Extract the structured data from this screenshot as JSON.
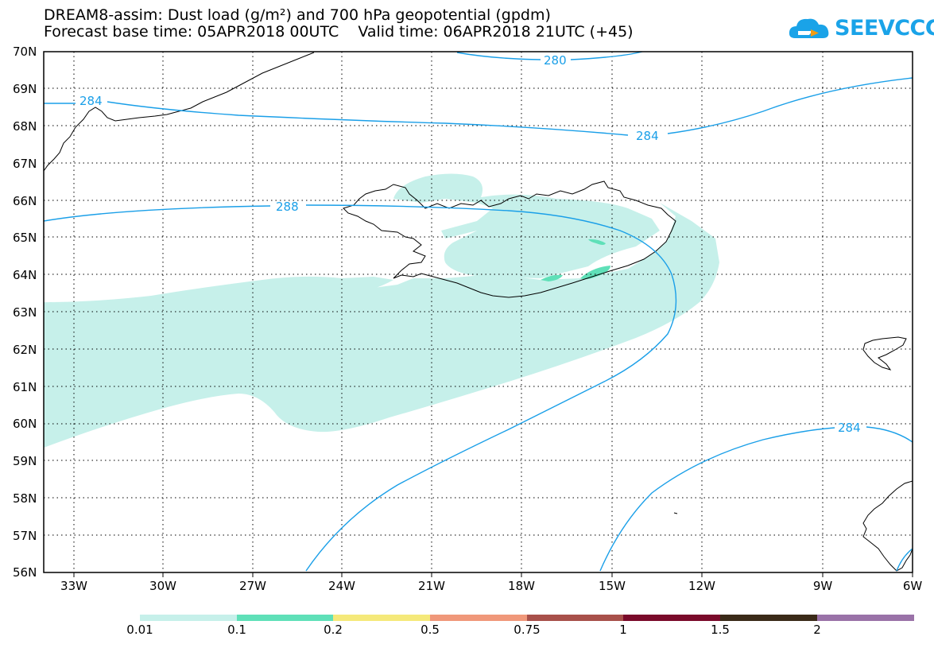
{
  "header": {
    "title_line1": "DREAM8-assim: Dust load (g/m²) and 700 hPa geopotential (gpdm)",
    "title_line2": "Forecast base time: 05APR2018 00UTC    Valid time: 06APR2018 21UTC (+45)",
    "logo_text": "SEEVCCC",
    "logo_icon": "cloud-logo-icon"
  },
  "map": {
    "lat_labels": [
      "70N",
      "69N",
      "68N",
      "67N",
      "66N",
      "65N",
      "64N",
      "63N",
      "62N",
      "61N",
      "60N",
      "59N",
      "58N",
      "57N",
      "56N"
    ],
    "lon_labels": [
      "33W",
      "30W",
      "27W",
      "24W",
      "21W",
      "18W",
      "15W",
      "12W",
      "9W",
      "6W"
    ],
    "contour_labels": [
      "280",
      "284",
      "284",
      "288",
      "284"
    ],
    "contour_color": "#1a9fe8",
    "coastline_color": "#000000",
    "grid": "dotted"
  },
  "colorbar": {
    "labels": [
      "0.01",
      "0.1",
      "0.2",
      "0.5",
      "0.75",
      "1",
      "1.5",
      "2"
    ],
    "colors": [
      "#c6f0ea",
      "#5fe0b8",
      "#f5e97a",
      "#f0987a",
      "#a8504a",
      "#7a0a2a",
      "#3a2a18",
      "#9a72a8"
    ]
  }
}
